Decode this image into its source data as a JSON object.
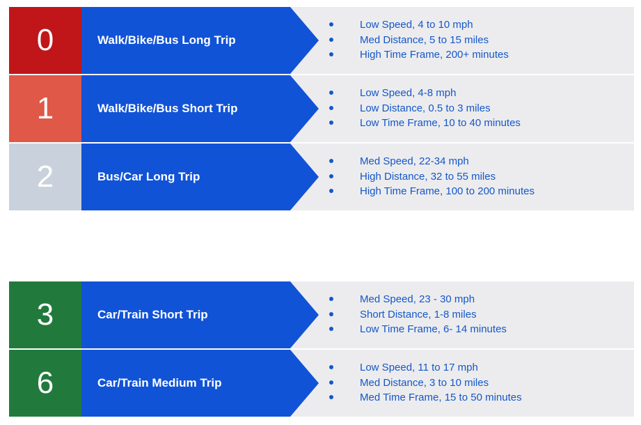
{
  "rows": [
    {
      "number": "0",
      "color": "#c0161a",
      "title": "Walk/Bike/Bus Long Trip",
      "items": [
        "Low Speed, 4 to 10 mph",
        "Med Distance, 5 to 15 miles",
        "High Time Frame, 200+ minutes"
      ]
    },
    {
      "number": "1",
      "color": "#e05848",
      "title": "Walk/Bike/Bus Short Trip",
      "items": [
        "Low Speed, 4-8 mph",
        "Low Distance, 0.5 to 3 miles",
        "Low Time Frame, 10 to 40 minutes"
      ]
    },
    {
      "number": "2",
      "color": "#c9d2dc",
      "title": "Bus/Car Long Trip",
      "items": [
        "Med Speed, 22-34 mph",
        "High Distance, 32 to 55  miles",
        "High Time Frame, 100 to 200 minutes"
      ]
    },
    {
      "number": "3",
      "color": "#217a3c",
      "title": "Car/Train Short Trip",
      "items": [
        "Med Speed, 23 - 30 mph",
        "Short Distance, 1-8 miles",
        "Low Time Frame, 6- 14 minutes"
      ]
    },
    {
      "number": "6",
      "color": "#217a3c",
      "title": "Car/Train Medium Trip",
      "items": [
        "Low Speed, 11 to 17 mph",
        "Med Distance, 3 to 10 miles",
        "Med Time Frame, 15 to 50 minutes"
      ]
    }
  ],
  "colors": {
    "arrow": "#1153d6",
    "panel": "#ececee",
    "bullet_text": "#1457c9"
  }
}
